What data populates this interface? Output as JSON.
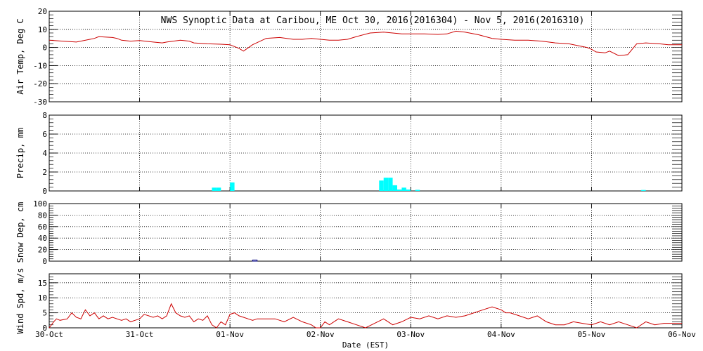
{
  "title": "NWS Synoptic Data at Caribou, ME   Oct 30, 2016(2016304) - Nov  5, 2016(2016310)",
  "xlabel": "Date (EST)",
  "x_ticks": [
    "30-Oct",
    "31-Oct",
    "01-Nov",
    "02-Nov",
    "03-Nov",
    "04-Nov",
    "05-Nov",
    "06-Nov"
  ],
  "chart_data": [
    {
      "type": "line",
      "ylabel": "Air Temp, Deg C",
      "ylim": [
        -30,
        20
      ],
      "y_ticks": [
        -30,
        -20,
        -10,
        0,
        10,
        20
      ],
      "grid": true,
      "line_color": "#cc0000",
      "x_unit": "days since 30-Oct 00:00",
      "series": [
        {
          "x": [
            0,
            0.15,
            0.3,
            0.45,
            0.5,
            0.55,
            0.6,
            0.7,
            0.75,
            0.8,
            0.9,
            1.0,
            1.15,
            1.25,
            1.3,
            1.45,
            1.55,
            1.6,
            1.75,
            1.9,
            2.0,
            2.1,
            2.15,
            2.25,
            2.4,
            2.55,
            2.7,
            2.8,
            2.9,
            3.0,
            3.1,
            3.2,
            3.3,
            3.4,
            3.55,
            3.7,
            3.8,
            3.9,
            4.0,
            4.15,
            4.3,
            4.4,
            4.5,
            4.6,
            4.75,
            4.9,
            5.0,
            5.15,
            5.3,
            5.45,
            5.6,
            5.75,
            5.85,
            5.95,
            6.0,
            6.05,
            6.15,
            6.2,
            6.3,
            6.4,
            6.5,
            6.6,
            6.75,
            6.85,
            7.0
          ],
          "y": [
            4,
            3.5,
            3,
            4.5,
            5,
            6,
            5.8,
            5.5,
            5,
            4,
            3.5,
            3.8,
            3,
            2.5,
            3,
            4,
            3.5,
            2.5,
            2,
            1.8,
            1.5,
            -0.5,
            -2,
            1.5,
            5,
            5.5,
            4.5,
            4.5,
            5,
            4.5,
            4,
            4,
            4.5,
            6,
            8,
            8.5,
            8,
            7.5,
            7.5,
            7.5,
            7.2,
            7.5,
            9,
            8.5,
            7,
            5,
            4.5,
            4,
            4,
            3.5,
            2.5,
            2,
            1,
            0,
            -1,
            -2.5,
            -3,
            -2,
            -4.5,
            -4,
            2,
            2.5,
            2,
            1.5,
            1.5
          ]
        }
      ]
    },
    {
      "type": "bar",
      "ylabel": "Precip, mm",
      "ylim": [
        0,
        8
      ],
      "y_ticks": [
        0,
        2,
        4,
        6,
        8
      ],
      "grid": true,
      "bar_color": "#00ffff",
      "bars": [
        {
          "x": 1.8,
          "v": 0.35
        },
        {
          "x": 1.85,
          "v": 0.35
        },
        {
          "x": 2.0,
          "v": 0.9
        },
        {
          "x": 3.65,
          "v": 1.1
        },
        {
          "x": 3.7,
          "v": 1.4
        },
        {
          "x": 3.75,
          "v": 1.4
        },
        {
          "x": 3.8,
          "v": 0.6
        },
        {
          "x": 3.85,
          "v": 0.15
        },
        {
          "x": 3.9,
          "v": 0.35
        },
        {
          "x": 3.95,
          "v": 0.15
        },
        {
          "x": 4.05,
          "v": 0.12
        },
        {
          "x": 6.55,
          "v": 0.1
        }
      ]
    },
    {
      "type": "bar",
      "ylabel": "Snow Dep, cm",
      "ylim": [
        0,
        100
      ],
      "y_ticks": [
        0,
        20,
        40,
        60,
        80,
        100
      ],
      "grid": true,
      "bar_color": "#000080",
      "bars": [
        {
          "x": 2.25,
          "v": 2
        }
      ]
    },
    {
      "type": "line",
      "ylabel": "Wind Spd, m/s",
      "ylim": [
        0,
        18
      ],
      "y_ticks": [
        0,
        5,
        10,
        15
      ],
      "grid": true,
      "line_color": "#cc0000",
      "series": [
        {
          "x": [
            0,
            0.05,
            0.08,
            0.12,
            0.2,
            0.25,
            0.3,
            0.35,
            0.4,
            0.45,
            0.5,
            0.55,
            0.6,
            0.65,
            0.7,
            0.75,
            0.8,
            0.85,
            0.9,
            0.95,
            1.0,
            1.05,
            1.15,
            1.2,
            1.25,
            1.3,
            1.35,
            1.4,
            1.45,
            1.5,
            1.55,
            1.6,
            1.65,
            1.7,
            1.75,
            1.8,
            1.85,
            1.9,
            1.95,
            2.0,
            2.05,
            2.1,
            2.15,
            2.2,
            2.25,
            2.3,
            2.4,
            2.5,
            2.55,
            2.6,
            2.7,
            2.8,
            2.9,
            2.95,
            3.0,
            3.05,
            3.1,
            3.2,
            3.3,
            3.4,
            3.5,
            3.6,
            3.7,
            3.8,
            3.9,
            4.0,
            4.1,
            4.2,
            4.3,
            4.4,
            4.5,
            4.6,
            4.7,
            4.8,
            4.9,
            5.0,
            5.05,
            5.1,
            5.2,
            5.3,
            5.4,
            5.5,
            5.6,
            5.7,
            5.8,
            5.9,
            6.0,
            6.1,
            6.2,
            6.3,
            6.4,
            6.5,
            6.6,
            6.7,
            6.8,
            6.9,
            7.0
          ],
          "y": [
            0,
            2,
            3,
            2.5,
            3,
            5,
            3.5,
            3,
            6,
            4,
            5,
            3,
            4,
            3,
            3.5,
            3,
            2.5,
            3,
            2,
            2.5,
            3,
            4.5,
            3.5,
            4,
            3,
            4,
            8,
            5,
            4,
            3.5,
            4,
            2,
            3,
            2.5,
            4,
            1,
            0,
            2,
            1,
            4.5,
            5,
            4,
            3.5,
            3,
            2.5,
            3,
            3,
            3,
            2.5,
            2,
            3.5,
            2,
            1,
            0,
            0,
            2,
            1,
            3,
            2,
            1,
            0,
            1.5,
            3,
            1,
            2,
            3.5,
            3,
            4,
            3,
            4,
            3.5,
            4,
            5,
            6,
            7,
            6,
            5,
            5,
            4,
            3,
            4,
            2,
            1,
            1,
            2,
            1.5,
            1,
            2,
            1,
            2,
            1,
            0,
            2,
            1,
            1.5,
            1.5,
            1.5
          ]
        }
      ]
    }
  ]
}
